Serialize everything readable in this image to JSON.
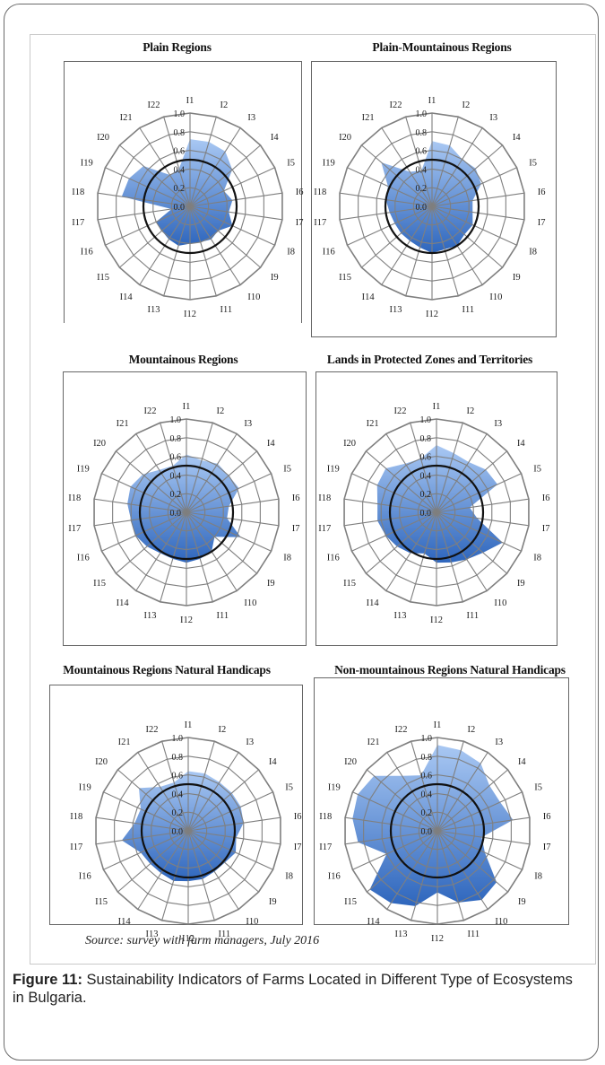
{
  "figure": {
    "source": "Source: survey with farm managers, July 2016",
    "caption_label": "Figure 11:",
    "caption_text": " Sustainability Indicators of Farms Located in Different Type of Ecosystems in Bulgaria."
  },
  "colors": {
    "fill_light": "#a9c8f3",
    "fill_dark": "#2e66bd",
    "grid": "#7f7f7f",
    "reference": "#111111"
  },
  "chart_data": [
    {
      "type": "radar",
      "title": "Plain Regions",
      "categories": [
        "I1",
        "I2",
        "I3",
        "I4",
        "I5",
        "I6",
        "I7",
        "I8",
        "I9",
        "I10",
        "I11",
        "I12",
        "I13",
        "I14",
        "I15",
        "I16",
        "I17",
        "I18",
        "I19",
        "I20",
        "I21",
        "I22"
      ],
      "rlim": [
        0,
        1.0
      ],
      "tick_labels": [
        "0.0",
        "0.2",
        "0.4",
        "0.6",
        "0.8",
        "1.0"
      ],
      "reference_value": 0.5,
      "values": [
        0.72,
        0.72,
        0.7,
        0.6,
        0.4,
        0.46,
        0.42,
        0.5,
        0.4,
        0.42,
        0.4,
        0.4,
        0.44,
        0.42,
        0.4,
        0.4,
        0.2,
        0.74,
        0.72,
        0.66,
        0.4,
        0.42
      ]
    },
    {
      "type": "radar",
      "title": "Plain-Mountainous Regions",
      "categories": [
        "I1",
        "I2",
        "I3",
        "I4",
        "I5",
        "I6",
        "I7",
        "I8",
        "I9",
        "I10",
        "I11",
        "I12",
        "I13",
        "I14",
        "I15",
        "I16",
        "I17",
        "I18",
        "I19",
        "I20",
        "I21",
        "I22"
      ],
      "rlim": [
        0,
        1.0
      ],
      "tick_labels": [
        "0.0",
        "0.2",
        "0.4",
        "0.6",
        "0.8",
        "1.0"
      ],
      "reference_value": 0.5,
      "values": [
        0.7,
        0.68,
        0.6,
        0.62,
        0.58,
        0.44,
        0.44,
        0.48,
        0.46,
        0.5,
        0.48,
        0.5,
        0.46,
        0.44,
        0.44,
        0.44,
        0.46,
        0.5,
        0.52,
        0.72,
        0.44,
        0.4
      ]
    },
    {
      "type": "radar",
      "title": "Mountainous Regions",
      "categories": [
        "I1",
        "I2",
        "I3",
        "I4",
        "I5",
        "I6",
        "I7",
        "I8",
        "I9",
        "I10",
        "I11",
        "I12",
        "I13",
        "I14",
        "I15",
        "I16",
        "I17",
        "I18",
        "I19",
        "I20",
        "I21",
        "I22"
      ],
      "rlim": [
        0,
        1.0
      ],
      "tick_labels": [
        "0.0",
        "0.2",
        "0.4",
        "0.6",
        "0.8",
        "1.0"
      ],
      "reference_value": 0.5,
      "values": [
        0.62,
        0.58,
        0.62,
        0.6,
        0.62,
        0.46,
        0.44,
        0.64,
        0.4,
        0.5,
        0.52,
        0.54,
        0.52,
        0.52,
        0.56,
        0.6,
        0.6,
        0.64,
        0.66,
        0.62,
        0.54,
        0.52
      ]
    },
    {
      "type": "radar",
      "title": "Lands in Protected Zones and Territories",
      "categories": [
        "I1",
        "I2",
        "I3",
        "I4",
        "I5",
        "I6",
        "I7",
        "I8",
        "I9",
        "I10",
        "I11",
        "I12",
        "I13",
        "I14",
        "I15",
        "I16",
        "I17",
        "I18",
        "I19",
        "I20",
        "I21",
        "I22"
      ],
      "rlim": [
        0,
        1.0
      ],
      "tick_labels": [
        "0.0",
        "0.2",
        "0.4",
        "0.6",
        "0.8",
        "1.0"
      ],
      "reference_value": 0.5,
      "values": [
        0.72,
        0.66,
        0.64,
        0.7,
        0.72,
        0.36,
        0.44,
        0.78,
        0.66,
        0.6,
        0.56,
        0.54,
        0.46,
        0.52,
        0.56,
        0.6,
        0.64,
        0.64,
        0.7,
        0.72,
        0.62,
        0.6
      ]
    },
    {
      "type": "radar",
      "title": "Mountainous Regions Natural Handicaps",
      "categories": [
        "I1",
        "I2",
        "I3",
        "I4",
        "I5",
        "I6",
        "I7",
        "I8",
        "I9",
        "I10",
        "I11",
        "I12",
        "I13",
        "I14",
        "I15",
        "I16",
        "I17",
        "I18",
        "I19",
        "I20",
        "I21",
        "I22"
      ],
      "rlim": [
        0,
        1.0
      ],
      "tick_labels": [
        "0.0",
        "0.2",
        "0.4",
        "0.6",
        "0.8",
        "1.0"
      ],
      "reference_value": 0.5,
      "values": [
        0.64,
        0.64,
        0.62,
        0.62,
        0.62,
        0.6,
        0.52,
        0.56,
        0.52,
        0.52,
        0.54,
        0.54,
        0.56,
        0.54,
        0.54,
        0.56,
        0.72,
        0.58,
        0.56,
        0.7,
        0.56,
        0.54
      ]
    },
    {
      "type": "radar",
      "title": "Non-mountainous Regions Natural Handicaps",
      "categories": [
        "I1",
        "I2",
        "I3",
        "I4",
        "I5",
        "I6",
        "I7",
        "I8",
        "I9",
        "I10",
        "I11",
        "I12",
        "I13",
        "I14",
        "I15",
        "I16",
        "I17",
        "I18",
        "I19",
        "I20",
        "I21",
        "I22"
      ],
      "rlim": [
        0,
        1.0
      ],
      "tick_labels": [
        "0.0",
        "0.2",
        "0.4",
        "0.6",
        "0.8",
        "1.0"
      ],
      "reference_value": 0.5,
      "values": [
        0.92,
        0.9,
        0.86,
        0.74,
        0.74,
        0.82,
        0.48,
        0.56,
        0.84,
        0.88,
        0.8,
        0.66,
        0.84,
        0.92,
        0.96,
        0.6,
        0.86,
        0.92,
        0.94,
        0.9,
        0.7,
        0.62
      ]
    }
  ]
}
